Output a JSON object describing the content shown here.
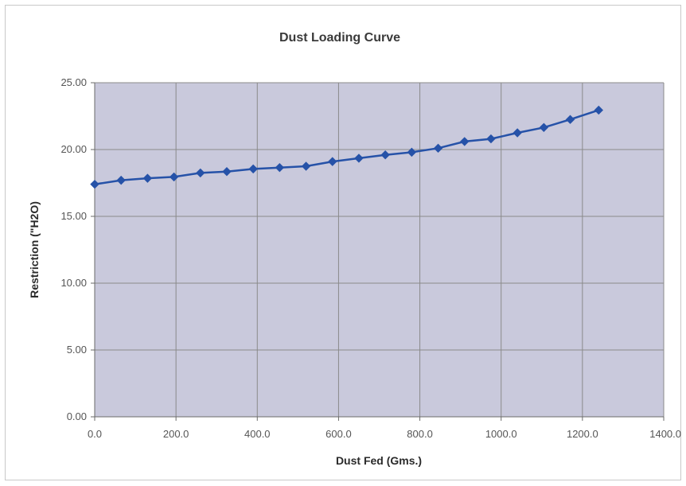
{
  "chart_data": {
    "type": "line",
    "title": "Dust Loading Curve",
    "xlabel": "Dust Fed (Gms.)",
    "ylabel": "Restriction (\"H2O)",
    "xlim": [
      0,
      1400
    ],
    "ylim": [
      0,
      25
    ],
    "x_ticks": [
      "0.0",
      "200.0",
      "400.0",
      "600.0",
      "800.0",
      "1000.0",
      "1200.0",
      "1400.0"
    ],
    "y_ticks": [
      "0.00",
      "5.00",
      "10.00",
      "15.00",
      "20.00",
      "25.00"
    ],
    "grid": true,
    "legend": "none",
    "colors": {
      "plot_background": "#c9c9dc",
      "gridline": "#8a8a8a",
      "series": "#2652a8"
    },
    "series": [
      {
        "x": [
          0,
          65,
          130,
          195,
          260,
          325,
          390,
          455,
          520,
          585,
          650,
          715,
          780,
          845,
          910,
          975,
          1040,
          1105,
          1170,
          1240
        ],
        "y": [
          17.4,
          17.7,
          17.85,
          17.95,
          18.25,
          18.35,
          18.55,
          18.65,
          18.75,
          19.1,
          19.35,
          19.6,
          19.8,
          20.1,
          20.6,
          20.8,
          21.25,
          21.65,
          22.25,
          22.95
        ]
      }
    ]
  }
}
